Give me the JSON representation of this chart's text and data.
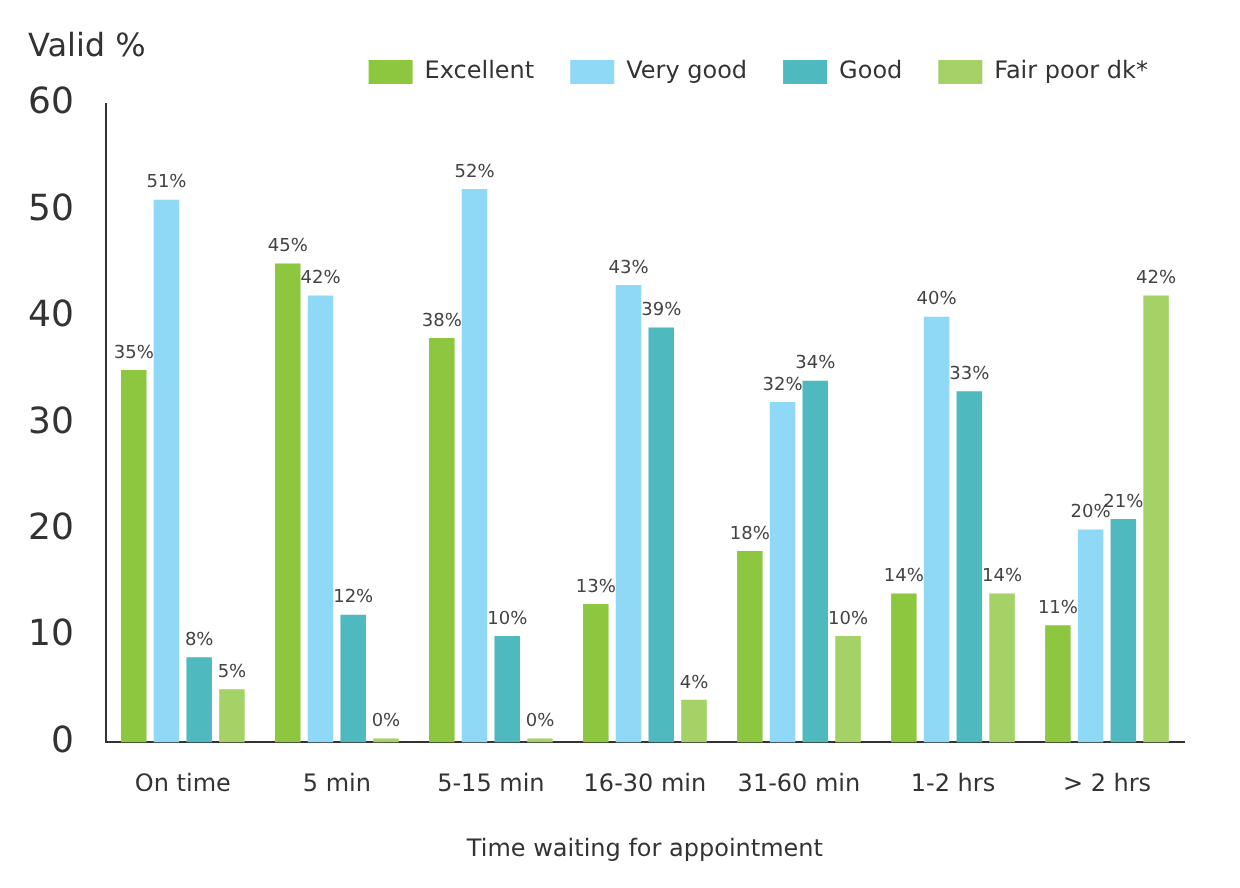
{
  "chart_data": {
    "type": "bar",
    "ylabel": "Valid %",
    "xlabel": "Time waiting for appointment",
    "categories": [
      "On time",
      "5 min",
      "5-15 min",
      "16-30 min",
      "31-60 min",
      "1-2 hrs",
      "> 2 hrs"
    ],
    "series": [
      {
        "name": "Excellent",
        "color": "#8dc63f",
        "values": [
          35,
          45,
          38,
          13,
          18,
          14,
          11
        ],
        "value_labels": [
          "35%",
          "45%",
          "38%",
          "13%",
          "18%",
          "14%",
          "11%"
        ]
      },
      {
        "name": "Very good",
        "color": "#8fd9f6",
        "values": [
          51,
          42,
          52,
          43,
          32,
          40,
          20
        ],
        "value_labels": [
          "51%",
          "42%",
          "52%",
          "43%",
          "32%",
          "40%",
          "20%"
        ]
      },
      {
        "name": "Good",
        "color": "#4fb9c0",
        "values": [
          8,
          12,
          10,
          39,
          34,
          33,
          21
        ],
        "value_labels": [
          "8%",
          "12%",
          "10%",
          "39%",
          "34%",
          "33%",
          "21%"
        ]
      },
      {
        "name": "Fair poor dk*",
        "color": "#a5d266",
        "values": [
          5,
          0,
          0,
          4,
          10,
          14,
          42
        ],
        "value_labels": [
          "5%",
          "0%",
          "0%",
          "4%",
          "10%",
          "14%",
          "42%"
        ]
      }
    ],
    "ylim": [
      0,
      60
    ],
    "yticks": [
      0,
      10,
      20,
      30,
      40,
      50,
      60
    ],
    "grid": false,
    "legend": "top"
  }
}
